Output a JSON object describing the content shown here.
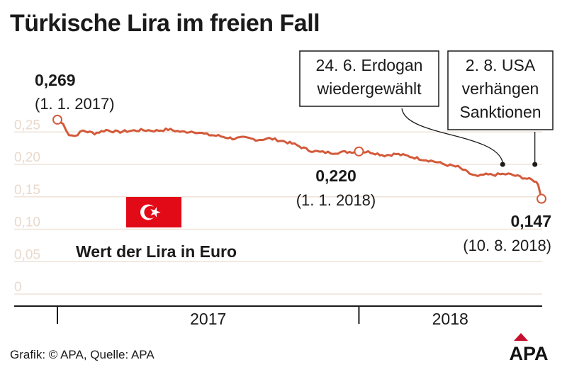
{
  "header": {
    "title": "Türkische Lira im freien Fall"
  },
  "footer": {
    "credit": "Grafik: © APA, Quelle: APA"
  },
  "logo": {
    "text": "APA",
    "color": "#c8102e"
  },
  "flag": {
    "icon": "turkey-flag-icon",
    "color": "#e30a17"
  },
  "colors": {
    "line": "#d35a3a",
    "grid": "#efe3d8",
    "tick": "#e9d9cc"
  },
  "chart_data": {
    "type": "line",
    "title": "Türkische Lira im freien Fall",
    "xlabel": "",
    "ylabel": "",
    "series_label": "Wert der Lira in Euro",
    "ylim": [
      0,
      0.27
    ],
    "yticks": [
      0,
      0.05,
      0.1,
      0.15,
      0.2,
      0.25
    ],
    "ytick_labels": [
      "0",
      "0,05",
      "0,10",
      "0,15",
      "0,20",
      "0,25"
    ],
    "xlim": [
      "2017-01-01",
      "2018-08-10"
    ],
    "xtick_labels": [
      "2017",
      "2018"
    ],
    "grid": true,
    "series": [
      {
        "values": [
          [
            "2017-01-01",
            0.269
          ],
          [
            "2017-01-08",
            0.262
          ],
          [
            "2017-01-15",
            0.246
          ],
          [
            "2017-01-22",
            0.244
          ],
          [
            "2017-02-01",
            0.252
          ],
          [
            "2017-02-15",
            0.248
          ],
          [
            "2017-03-01",
            0.253
          ],
          [
            "2017-03-15",
            0.25
          ],
          [
            "2017-04-01",
            0.252
          ],
          [
            "2017-04-15",
            0.253
          ],
          [
            "2017-05-01",
            0.252
          ],
          [
            "2017-05-15",
            0.254
          ],
          [
            "2017-06-01",
            0.25
          ],
          [
            "2017-06-15",
            0.251
          ],
          [
            "2017-07-01",
            0.246
          ],
          [
            "2017-07-15",
            0.244
          ],
          [
            "2017-08-01",
            0.24
          ],
          [
            "2017-08-15",
            0.241
          ],
          [
            "2017-09-01",
            0.238
          ],
          [
            "2017-09-15",
            0.24
          ],
          [
            "2017-10-01",
            0.236
          ],
          [
            "2017-10-15",
            0.231
          ],
          [
            "2017-11-01",
            0.222
          ],
          [
            "2017-11-15",
            0.219
          ],
          [
            "2017-12-01",
            0.218
          ],
          [
            "2017-12-15",
            0.219
          ],
          [
            "2018-01-01",
            0.22
          ],
          [
            "2018-01-15",
            0.219
          ],
          [
            "2018-02-01",
            0.214
          ],
          [
            "2018-02-15",
            0.216
          ],
          [
            "2018-03-01",
            0.213
          ],
          [
            "2018-03-15",
            0.209
          ],
          [
            "2018-04-01",
            0.205
          ],
          [
            "2018-04-15",
            0.2
          ],
          [
            "2018-05-01",
            0.196
          ],
          [
            "2018-05-15",
            0.186
          ],
          [
            "2018-05-25",
            0.181
          ],
          [
            "2018-06-01",
            0.184
          ],
          [
            "2018-06-15",
            0.184
          ],
          [
            "2018-06-24",
            0.185
          ],
          [
            "2018-07-01",
            0.185
          ],
          [
            "2018-07-15",
            0.181
          ],
          [
            "2018-08-01",
            0.175
          ],
          [
            "2018-08-06",
            0.17
          ],
          [
            "2018-08-10",
            0.147
          ]
        ]
      }
    ],
    "highlights": [
      {
        "date": "2017-01-01",
        "value_label": "0,269",
        "date_label": "(1. 1. 2017)"
      },
      {
        "date": "2018-01-01",
        "value_label": "0,220",
        "date_label": "(1. 1. 2018)"
      },
      {
        "date": "2018-08-10",
        "value_label": "0,147",
        "date_label": "(10. 8. 2018)"
      }
    ],
    "annotations": [
      {
        "date": "2018-06-24",
        "lines": [
          "24. 6. Erdogan",
          "wiedergewählt"
        ]
      },
      {
        "date": "2018-08-02",
        "lines": [
          "2. 8. USA",
          "verhängen",
          "Sanktionen"
        ]
      }
    ]
  }
}
